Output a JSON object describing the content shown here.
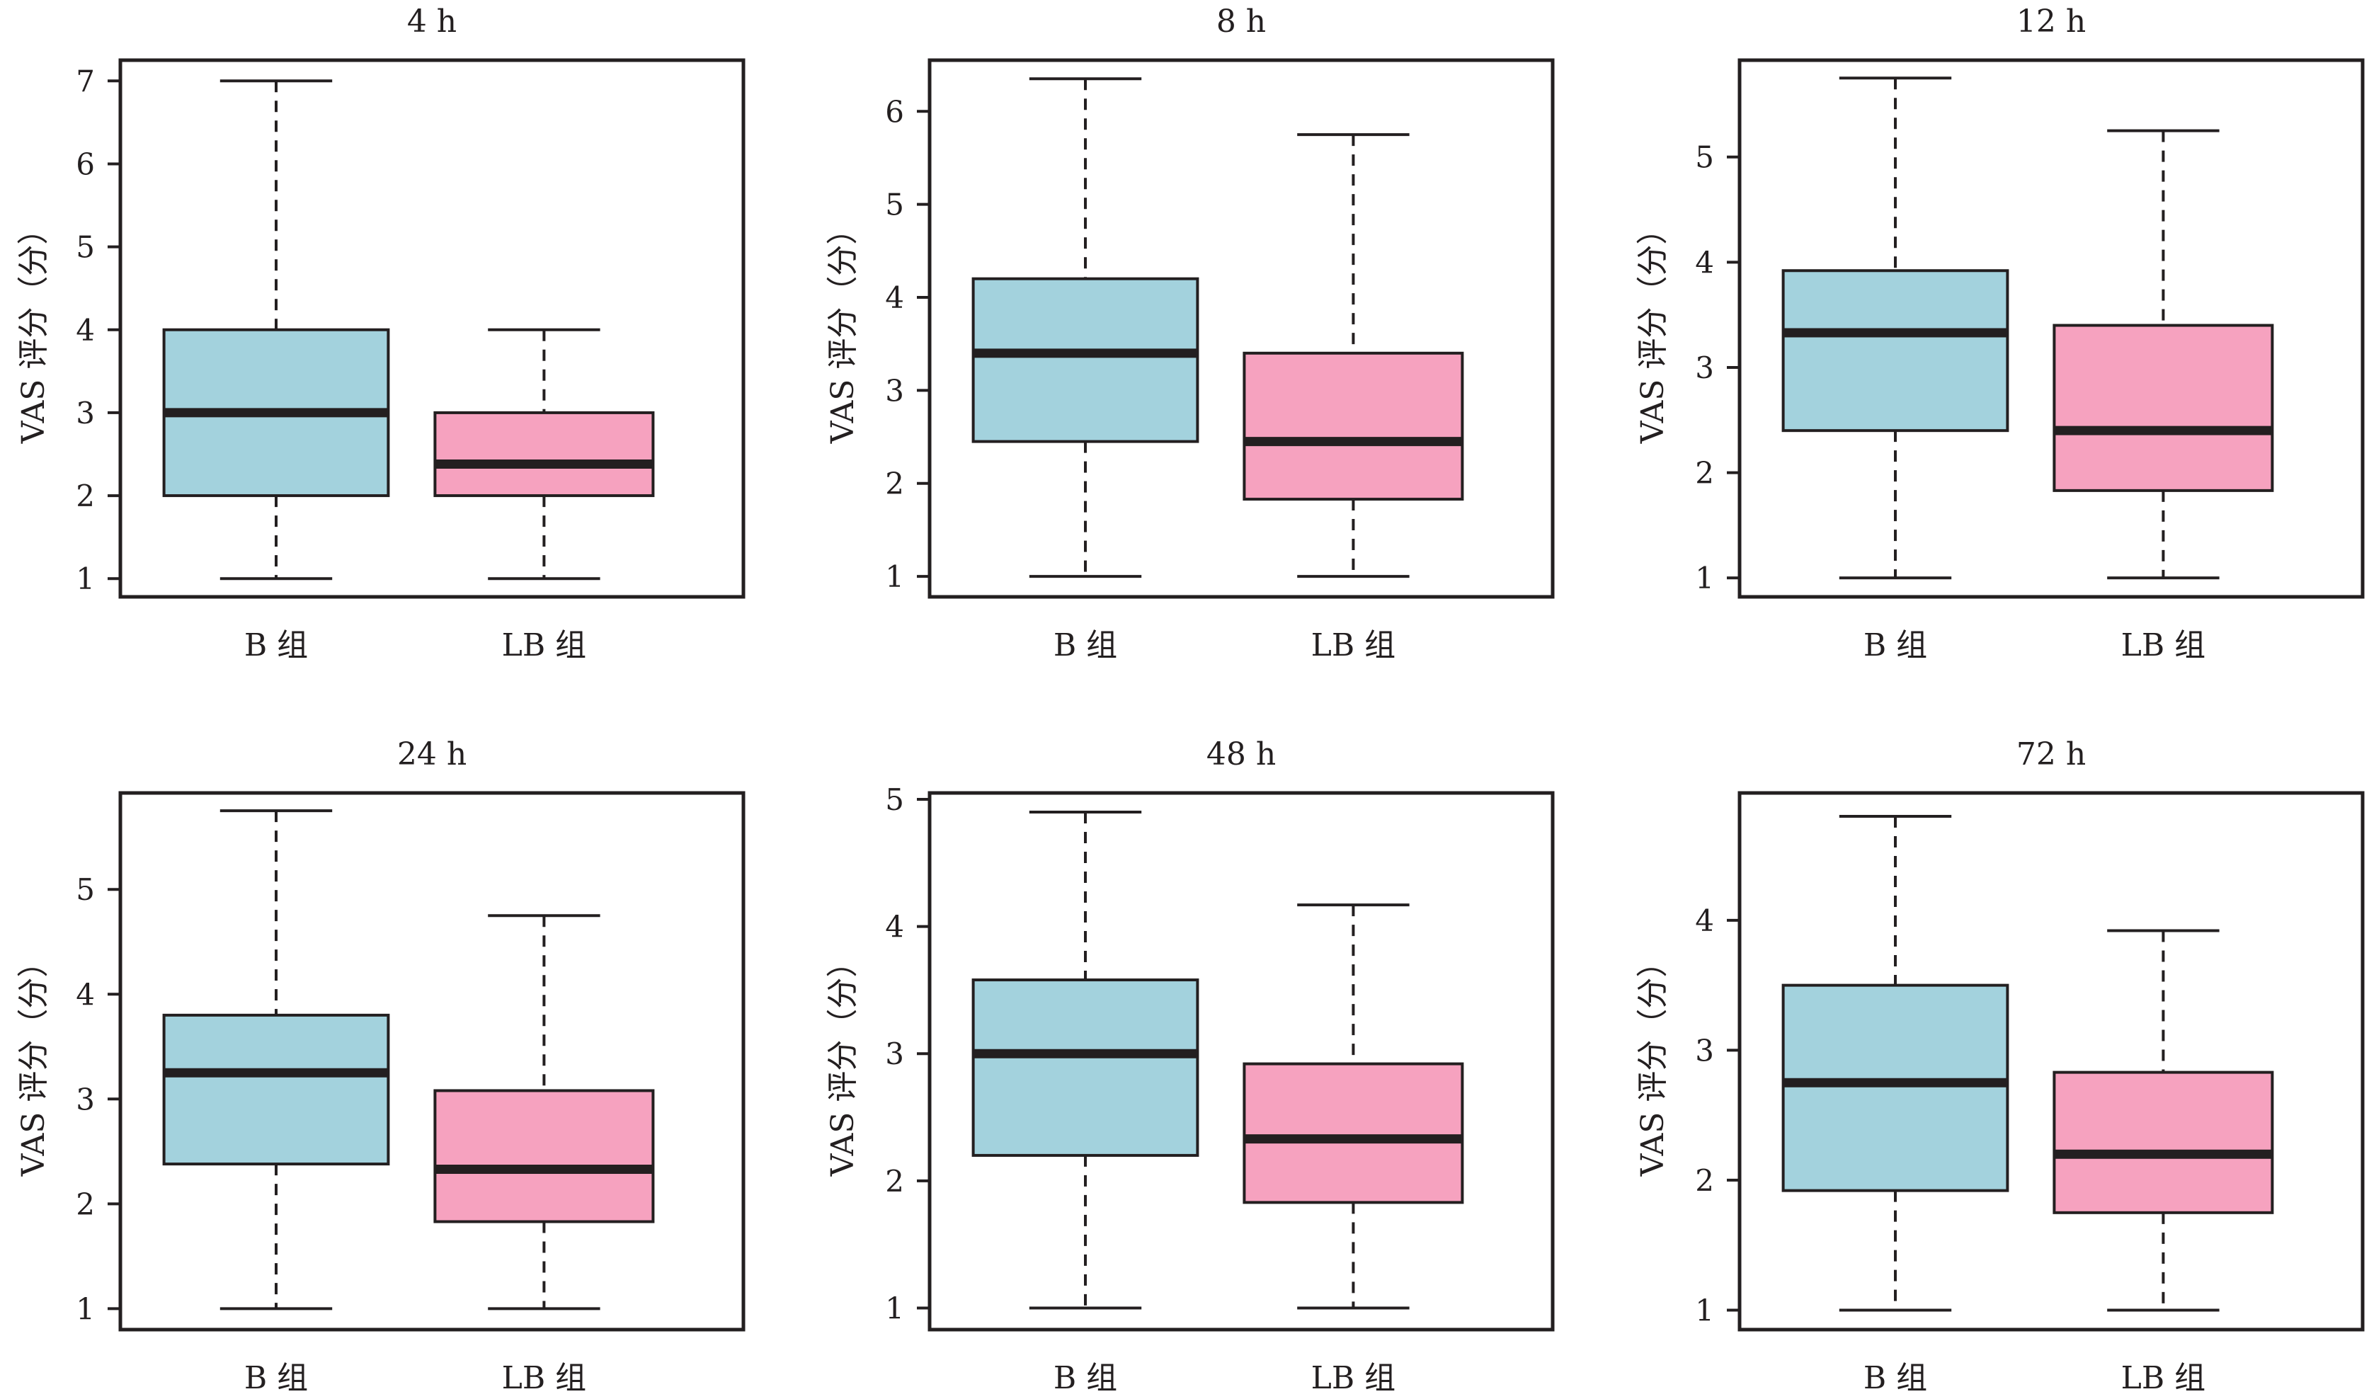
{
  "colors": {
    "b_group": "#a3d2dd",
    "lb_group": "#f6a2bf",
    "ink": "#231f20"
  },
  "chart_data": [
    {
      "type": "boxplot",
      "title": "4 h",
      "ylabel": "VAS 评分（分）",
      "categories": [
        "B 组",
        "LB 组"
      ],
      "yticks": [
        1,
        2,
        3,
        4,
        5,
        6,
        7
      ],
      "ylim": [
        0.78,
        7.25
      ],
      "grid": false,
      "boxes": [
        {
          "category": "B 组",
          "min": 1,
          "q1": 2,
          "median": 3,
          "q3": 4,
          "max": 7
        },
        {
          "category": "LB 组",
          "min": 1,
          "q1": 2,
          "median": 2.38,
          "q3": 3,
          "max": 4
        }
      ]
    },
    {
      "type": "boxplot",
      "title": "8 h",
      "ylabel": "VAS 评分（分）",
      "categories": [
        "B 组",
        "LB 组"
      ],
      "yticks": [
        1,
        2,
        3,
        4,
        5,
        6
      ],
      "ylim": [
        0.78,
        6.55
      ],
      "grid": false,
      "boxes": [
        {
          "category": "B 组",
          "min": 1,
          "q1": 2.45,
          "median": 3.4,
          "q3": 4.2,
          "max": 6.35
        },
        {
          "category": "LB 组",
          "min": 1,
          "q1": 1.83,
          "median": 2.45,
          "q3": 3.4,
          "max": 5.75
        }
      ]
    },
    {
      "type": "boxplot",
      "title": "12 h",
      "ylabel": "VAS 评分（分）",
      "categories": [
        "B 组",
        "LB 组"
      ],
      "yticks": [
        1,
        2,
        3,
        4,
        5
      ],
      "ylim": [
        0.82,
        5.92
      ],
      "grid": false,
      "boxes": [
        {
          "category": "B 组",
          "min": 1,
          "q1": 2.4,
          "median": 3.33,
          "q3": 3.92,
          "max": 5.75
        },
        {
          "category": "LB 组",
          "min": 1,
          "q1": 1.83,
          "median": 2.4,
          "q3": 3.4,
          "max": 5.25
        }
      ]
    },
    {
      "type": "boxplot",
      "title": "24 h",
      "ylabel": "VAS 评分（分）",
      "categories": [
        "B 组",
        "LB 组"
      ],
      "yticks": [
        1,
        2,
        3,
        4,
        5
      ],
      "ylim": [
        0.8,
        5.92
      ],
      "grid": false,
      "boxes": [
        {
          "category": "B 组",
          "min": 1,
          "q1": 2.38,
          "median": 3.25,
          "q3": 3.8,
          "max": 5.75
        },
        {
          "category": "LB 组",
          "min": 1,
          "q1": 1.83,
          "median": 2.33,
          "q3": 3.08,
          "max": 4.75
        }
      ]
    },
    {
      "type": "boxplot",
      "title": "48 h",
      "ylabel": "VAS 评分（分）",
      "categories": [
        "B 组",
        "LB 组"
      ],
      "yticks": [
        1,
        2,
        3,
        4,
        5
      ],
      "ylim": [
        0.83,
        5.05
      ],
      "grid": false,
      "boxes": [
        {
          "category": "B 组",
          "min": 1,
          "q1": 2.2,
          "median": 3,
          "q3": 3.58,
          "max": 4.9
        },
        {
          "category": "LB 组",
          "min": 1,
          "q1": 1.83,
          "median": 2.33,
          "q3": 2.92,
          "max": 4.17
        }
      ]
    },
    {
      "type": "boxplot",
      "title": "72 h",
      "ylabel": "VAS 评分（分）",
      "categories": [
        "B 组",
        "LB 组"
      ],
      "yticks": [
        1,
        2,
        3,
        4
      ],
      "ylim": [
        0.85,
        4.98
      ],
      "grid": false,
      "boxes": [
        {
          "category": "B 组",
          "min": 1,
          "q1": 1.92,
          "median": 2.75,
          "q3": 3.5,
          "max": 4.8
        },
        {
          "category": "LB 组",
          "min": 1,
          "q1": 1.75,
          "median": 2.2,
          "q3": 2.83,
          "max": 3.92
        }
      ]
    }
  ]
}
